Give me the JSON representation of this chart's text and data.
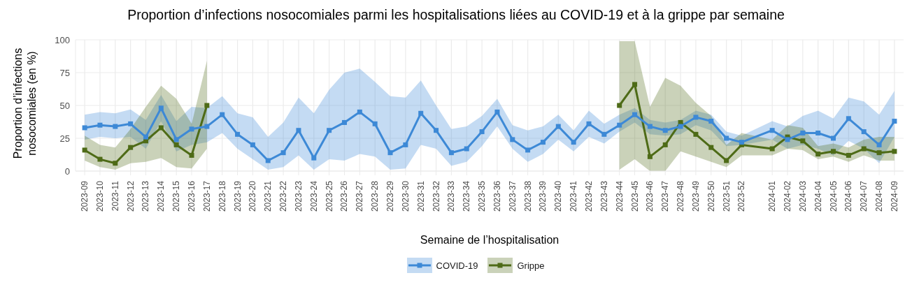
{
  "chart_data": {
    "type": "line",
    "title": "Proportion d’infections nosocomiales parmi les hospitalisations liées au COVID-19 et à la grippe par semaine",
    "xlabel": "Semaine de l’hospitalisation",
    "ylabel": "Proportion d’infections nosocomiales (en %)",
    "categories": [
      "2023-09",
      "2023-10",
      "2023-11",
      "2023-12",
      "2023-13",
      "2023-14",
      "2023-15",
      "2023-16",
      "2023-17",
      "2023-18",
      "2023-19",
      "2023-20",
      "2023-21",
      "2023-22",
      "2023-23",
      "2023-24",
      "2023-25",
      "2023-26",
      "2023-27",
      "2023-28",
      "2023-29",
      "2023-30",
      "2023-31",
      "2023-32",
      "2023-33",
      "2023-34",
      "2023-35",
      "2023-36",
      "2023-37",
      "2023-38",
      "2023-39",
      "2023-40",
      "2023-41",
      "2023-42",
      "2023-43",
      "2023-44",
      "2023-45",
      "2023-46",
      "2023-47",
      "2023-48",
      "2023-49",
      "2023-50",
      "2023-51",
      "2023-52",
      null,
      "2024-01",
      "2024-02",
      "2024-03",
      "2024-04",
      "2024-05",
      "2024-06",
      "2024-07",
      "2024-08",
      "2024-09"
    ],
    "series": [
      {
        "name": "COVID-19",
        "color": "#3d89d6",
        "values": [
          33,
          35,
          34,
          36,
          26,
          48,
          24,
          32,
          34,
          43,
          28,
          20,
          8,
          14,
          31,
          10,
          31,
          37,
          45,
          36,
          14,
          20,
          44,
          31,
          14,
          17,
          30,
          45,
          24,
          16,
          22,
          34,
          22,
          36,
          28,
          35,
          43,
          34,
          31,
          34,
          41,
          38,
          25,
          22,
          null,
          31,
          24,
          29,
          29,
          25,
          40,
          30,
          20,
          38
        ],
        "lower": [
          24,
          26,
          25,
          26,
          17,
          38,
          15,
          20,
          22,
          29,
          17,
          9,
          1,
          3,
          12,
          1,
          9,
          8,
          13,
          11,
          1,
          2,
          20,
          17,
          4,
          7,
          19,
          34,
          17,
          7,
          13,
          24,
          15,
          26,
          21,
          30,
          37,
          28,
          27,
          28,
          35,
          31,
          19,
          20,
          null,
          24,
          17,
          20,
          17,
          12,
          23,
          17,
          6,
          26
        ],
        "upper": [
          43,
          45,
          44,
          47,
          39,
          58,
          38,
          49,
          48,
          57,
          44,
          41,
          26,
          37,
          56,
          44,
          62,
          75,
          78,
          68,
          57,
          56,
          69,
          50,
          32,
          34,
          42,
          55,
          35,
          31,
          34,
          43,
          31,
          46,
          36,
          43,
          48,
          39,
          37,
          39,
          46,
          43,
          30,
          27,
          null,
          38,
          34,
          42,
          46,
          40,
          56,
          53,
          43,
          61
        ]
      },
      {
        "name": "Grippe",
        "color": "#4e6b17",
        "values": [
          16,
          9,
          6,
          18,
          23,
          33,
          20,
          12,
          50,
          null,
          null,
          null,
          null,
          null,
          null,
          null,
          null,
          null,
          null,
          null,
          null,
          null,
          null,
          null,
          null,
          null,
          null,
          null,
          null,
          null,
          null,
          null,
          null,
          null,
          null,
          50,
          66,
          11,
          20,
          37,
          28,
          18,
          8,
          20,
          null,
          17,
          26,
          23,
          13,
          15,
          12,
          17,
          14,
          15
        ],
        "lower": [
          8,
          3,
          1,
          6,
          7,
          10,
          3,
          2,
          17,
          null,
          null,
          null,
          null,
          null,
          null,
          null,
          null,
          null,
          null,
          null,
          null,
          null,
          null,
          null,
          null,
          null,
          null,
          null,
          null,
          null,
          null,
          null,
          null,
          null,
          null,
          1,
          9,
          0,
          0,
          15,
          11,
          7,
          3,
          12,
          null,
          12,
          17,
          16,
          9,
          11,
          7,
          12,
          8,
          8
        ],
        "upper": [
          27,
          20,
          18,
          32,
          49,
          65,
          55,
          36,
          84,
          null,
          null,
          null,
          null,
          null,
          null,
          null,
          null,
          null,
          null,
          null,
          null,
          null,
          null,
          null,
          null,
          null,
          null,
          null,
          null,
          null,
          null,
          null,
          null,
          null,
          null,
          99,
          99,
          49,
          71,
          65,
          52,
          42,
          20,
          29,
          null,
          24,
          35,
          33,
          19,
          21,
          18,
          24,
          26,
          26
        ]
      }
    ],
    "ylim": [
      0,
      100
    ],
    "yticks": [
      0,
      25,
      50,
      75,
      100
    ],
    "grid": true,
    "legend": "bottom",
    "marker": "square",
    "line_style": "solid"
  }
}
